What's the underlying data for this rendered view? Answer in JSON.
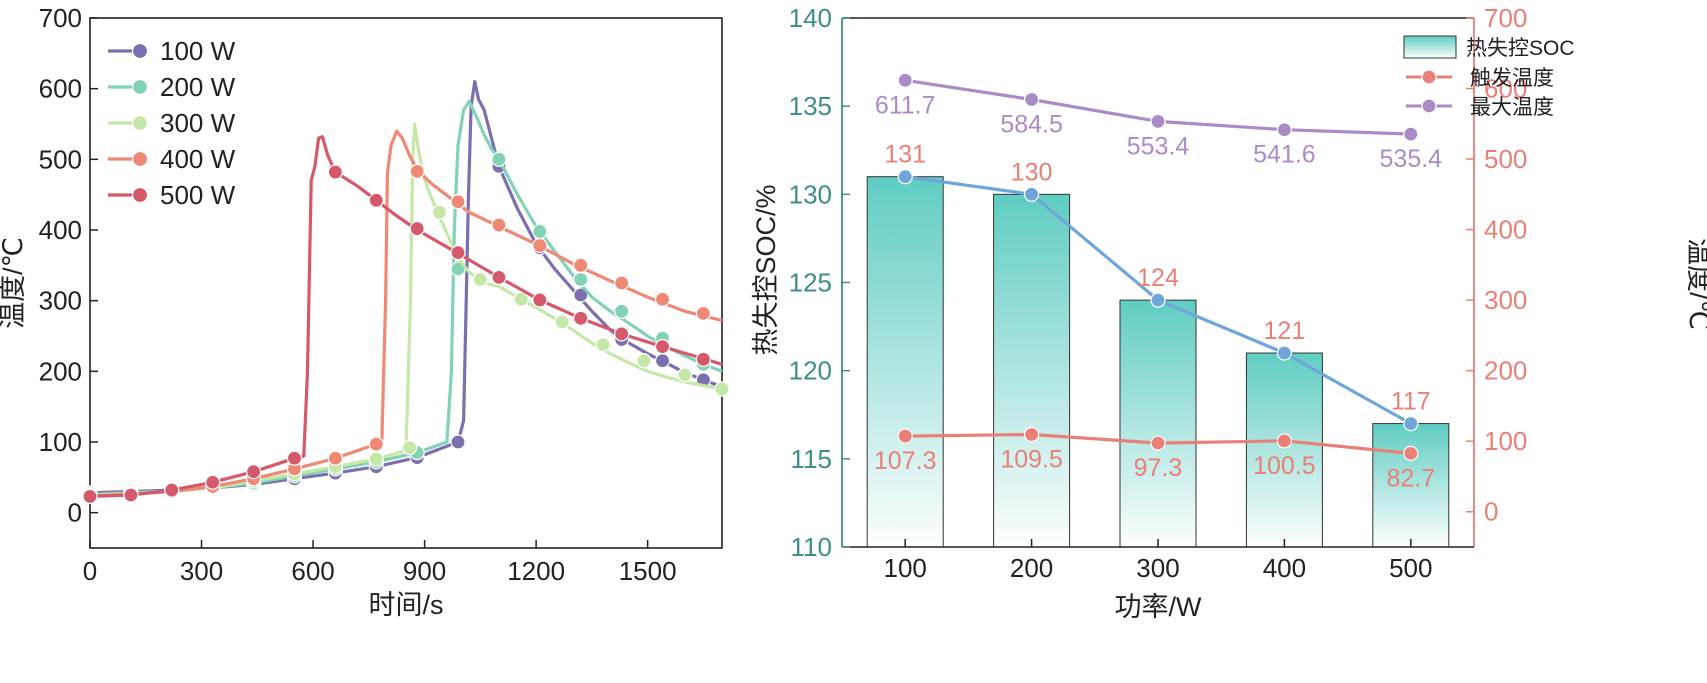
{
  "chart_data": [
    {
      "type": "line",
      "xlabel": "时间/s",
      "ylabel": "温度/℃",
      "xlim": [
        0,
        1700
      ],
      "ylim": [
        -50,
        700
      ],
      "xticks": [
        "0",
        "300",
        "600",
        "900",
        "1200",
        "1500"
      ],
      "yticks": [
        "0",
        "100",
        "200",
        "300",
        "400",
        "500",
        "600",
        "700"
      ],
      "legend_position": "top-left",
      "series": [
        {
          "name": "100 W",
          "color": "#7b6fb0",
          "points": [
            [
              0,
              28
            ],
            [
              110,
              30
            ],
            [
              220,
              32
            ],
            [
              330,
              35
            ],
            [
              440,
              40
            ],
            [
              550,
              48
            ],
            [
              660,
              56
            ],
            [
              770,
              65
            ],
            [
              880,
              78
            ],
            [
              990,
              100
            ],
            [
              1005,
              130
            ],
            [
              1018,
              450
            ],
            [
              1025,
              575
            ],
            [
              1035,
              610
            ],
            [
              1045,
              585
            ],
            [
              1060,
              570
            ],
            [
              1080,
              530
            ],
            [
              1100,
              490
            ],
            [
              1150,
              430
            ],
            [
              1200,
              380
            ],
            [
              1250,
              345
            ],
            [
              1300,
              315
            ],
            [
              1350,
              285
            ],
            [
              1400,
              258
            ],
            [
              1450,
              240
            ],
            [
              1500,
              225
            ],
            [
              1550,
              212
            ],
            [
              1600,
              198
            ],
            [
              1650,
              188
            ],
            [
              1700,
              178
            ]
          ],
          "markers": [
            [
              0,
              28
            ],
            [
              110,
              30
            ],
            [
              220,
              32
            ],
            [
              330,
              35
            ],
            [
              440,
              40
            ],
            [
              550,
              48
            ],
            [
              660,
              56
            ],
            [
              770,
              65
            ],
            [
              880,
              78
            ],
            [
              990,
              100
            ],
            [
              1100,
              490
            ],
            [
              1210,
              375
            ],
            [
              1320,
              308
            ],
            [
              1430,
              245
            ],
            [
              1540,
              215
            ],
            [
              1650,
              188
            ]
          ]
        },
        {
          "name": "200 W",
          "color": "#82d3b6",
          "points": [
            [
              0,
              26
            ],
            [
              110,
              28
            ],
            [
              220,
              31
            ],
            [
              330,
              35
            ],
            [
              440,
              42
            ],
            [
              550,
              52
            ],
            [
              660,
              62
            ],
            [
              770,
              72
            ],
            [
              880,
              85
            ],
            [
              960,
              100
            ],
            [
              972,
              200
            ],
            [
              980,
              400
            ],
            [
              990,
              520
            ],
            [
              1005,
              570
            ],
            [
              1020,
              582
            ],
            [
              1040,
              560
            ],
            [
              1060,
              535
            ],
            [
              1080,
              515
            ],
            [
              1100,
              500
            ],
            [
              1150,
              450
            ],
            [
              1200,
              405
            ],
            [
              1250,
              370
            ],
            [
              1300,
              335
            ],
            [
              1350,
              305
            ],
            [
              1400,
              285
            ],
            [
              1450,
              268
            ],
            [
              1500,
              250
            ],
            [
              1550,
              235
            ],
            [
              1600,
              222
            ],
            [
              1650,
              210
            ],
            [
              1700,
              200
            ]
          ],
          "markers": [
            [
              0,
              26
            ],
            [
              110,
              28
            ],
            [
              220,
              31
            ],
            [
              330,
              35
            ],
            [
              440,
              42
            ],
            [
              550,
              52
            ],
            [
              660,
              62
            ],
            [
              770,
              72
            ],
            [
              880,
              85
            ],
            [
              990,
              345
            ],
            [
              1100,
              500
            ],
            [
              1210,
              398
            ],
            [
              1320,
              330
            ],
            [
              1430,
              285
            ],
            [
              1540,
              247
            ],
            [
              1650,
              210
            ]
          ]
        },
        {
          "name": "300 W",
          "color": "#c5e8a8",
          "points": [
            [
              0,
              25
            ],
            [
              110,
              27
            ],
            [
              220,
              30
            ],
            [
              330,
              35
            ],
            [
              440,
              45
            ],
            [
              550,
              55
            ],
            [
              660,
              65
            ],
            [
              770,
              76
            ],
            [
              850,
              88
            ],
            [
              862,
              300
            ],
            [
              868,
              500
            ],
            [
              873,
              550
            ],
            [
              880,
              525
            ],
            [
              895,
              480
            ],
            [
              915,
              450
            ],
            [
              935,
              425
            ],
            [
              960,
              395
            ],
            [
              990,
              360
            ],
            [
              1020,
              340
            ],
            [
              1060,
              325
            ],
            [
              1100,
              320
            ],
            [
              1150,
              305
            ],
            [
              1200,
              290
            ],
            [
              1250,
              275
            ],
            [
              1300,
              258
            ],
            [
              1350,
              240
            ],
            [
              1400,
              225
            ],
            [
              1450,
              212
            ],
            [
              1500,
              200
            ],
            [
              1550,
              192
            ],
            [
              1600,
              185
            ],
            [
              1650,
              180
            ],
            [
              1700,
              175
            ]
          ],
          "markers": [
            [
              0,
              25
            ],
            [
              110,
              27
            ],
            [
              220,
              30
            ],
            [
              330,
              35
            ],
            [
              440,
              45
            ],
            [
              550,
              55
            ],
            [
              660,
              65
            ],
            [
              770,
              76
            ],
            [
              860,
              92
            ],
            [
              940,
              425
            ],
            [
              1050,
              330
            ],
            [
              1160,
              302
            ],
            [
              1270,
              270
            ],
            [
              1380,
              238
            ],
            [
              1490,
              215
            ],
            [
              1600,
              195
            ],
            [
              1700,
              175
            ]
          ]
        },
        {
          "name": "400 W",
          "color": "#ef8875",
          "points": [
            [
              0,
              24
            ],
            [
              110,
              26
            ],
            [
              220,
              30
            ],
            [
              330,
              37
            ],
            [
              440,
              48
            ],
            [
              550,
              62
            ],
            [
              660,
              77
            ],
            [
              770,
              97
            ],
            [
              785,
              100
            ],
            [
              795,
              300
            ],
            [
              800,
              480
            ],
            [
              810,
              520
            ],
            [
              825,
              540
            ],
            [
              840,
              530
            ],
            [
              860,
              505
            ],
            [
              880,
              485
            ],
            [
              920,
              465
            ],
            [
              970,
              445
            ],
            [
              1020,
              425
            ],
            [
              1100,
              405
            ],
            [
              1200,
              380
            ],
            [
              1300,
              352
            ],
            [
              1400,
              328
            ],
            [
              1500,
              305
            ],
            [
              1600,
              285
            ],
            [
              1700,
              272
            ]
          ],
          "markers": [
            [
              0,
              24
            ],
            [
              110,
              26
            ],
            [
              220,
              30
            ],
            [
              330,
              37
            ],
            [
              440,
              48
            ],
            [
              550,
              62
            ],
            [
              660,
              77
            ],
            [
              770,
              97
            ],
            [
              880,
              483
            ],
            [
              990,
              440
            ],
            [
              1100,
              407
            ],
            [
              1210,
              378
            ],
            [
              1320,
              350
            ],
            [
              1430,
              325
            ],
            [
              1540,
              302
            ],
            [
              1650,
              282
            ]
          ]
        },
        {
          "name": "500 W",
          "color": "#d6596b",
          "points": [
            [
              0,
              23
            ],
            [
              110,
              25
            ],
            [
              220,
              32
            ],
            [
              330,
              43
            ],
            [
              440,
              58
            ],
            [
              550,
              77
            ],
            [
              575,
              80
            ],
            [
              585,
              200
            ],
            [
              595,
              470
            ],
            [
              605,
              490
            ],
            [
              615,
              530
            ],
            [
              625,
              532
            ],
            [
              640,
              505
            ],
            [
              660,
              482
            ],
            [
              690,
              472
            ],
            [
              720,
              462
            ],
            [
              770,
              442
            ],
            [
              820,
              422
            ],
            [
              880,
              400
            ],
            [
              990,
              367
            ],
            [
              1100,
              333
            ],
            [
              1210,
              301
            ],
            [
              1320,
              275
            ],
            [
              1430,
              253
            ],
            [
              1540,
              235
            ],
            [
              1650,
              218
            ],
            [
              1700,
              210
            ]
          ],
          "markers": [
            [
              0,
              23
            ],
            [
              110,
              25
            ],
            [
              220,
              32
            ],
            [
              330,
              43
            ],
            [
              440,
              58
            ],
            [
              550,
              77
            ],
            [
              660,
              482
            ],
            [
              770,
              442
            ],
            [
              880,
              402
            ],
            [
              990,
              368
            ],
            [
              1100,
              333
            ],
            [
              1210,
              301
            ],
            [
              1320,
              275
            ],
            [
              1430,
              253
            ],
            [
              1540,
              235
            ],
            [
              1650,
              217
            ]
          ]
        }
      ]
    },
    {
      "type": "bar",
      "xlabel": "功率/W",
      "ylabel": "热失控SOC/%",
      "ylabel_right": "温度/℃",
      "categories": [
        "100",
        "200",
        "300",
        "400",
        "500"
      ],
      "ylim": [
        110,
        140
      ],
      "yticks": [
        "110",
        "115",
        "120",
        "125",
        "130",
        "135",
        "140"
      ],
      "ylim_right": [
        -50,
        700
      ],
      "yticks_right": [
        "0",
        "100",
        "200",
        "300",
        "400",
        "500",
        "600",
        "700"
      ],
      "legend_position": "top-right",
      "series": [
        {
          "name": "热失控SOC",
          "kind": "bar",
          "color": "#5fcdc2",
          "values": [
            131,
            130,
            124,
            121,
            117
          ],
          "labels": [
            "131",
            "130",
            "124",
            "121",
            "117"
          ]
        },
        {
          "name": "热失控SOC-line",
          "kind": "line",
          "color": "#6fa6d9",
          "values": [
            131,
            130,
            124,
            121,
            117
          ]
        },
        {
          "name": "触发温度",
          "kind": "line",
          "axis": "right",
          "color": "#e98078",
          "values": [
            107.3,
            109.5,
            97.3,
            100.5,
            82.7
          ],
          "labels": [
            "107.3",
            "109.5",
            "97.3",
            "100.5",
            "82.7"
          ]
        },
        {
          "name": "最大温度",
          "kind": "line",
          "axis": "right",
          "color": "#a98cc7",
          "values": [
            611.7,
            584.5,
            553.4,
            541.6,
            535.4
          ],
          "labels": [
            "611.7",
            "584.5",
            "553.4",
            "541.6",
            "535.4"
          ]
        }
      ],
      "legend": [
        "热失控SOC",
        "触发温度",
        "最大温度"
      ]
    }
  ],
  "colors": {
    "left_axis_color": "#3f8f88",
    "right_axis_color": "#e98078",
    "axis_dark": "#222222"
  }
}
